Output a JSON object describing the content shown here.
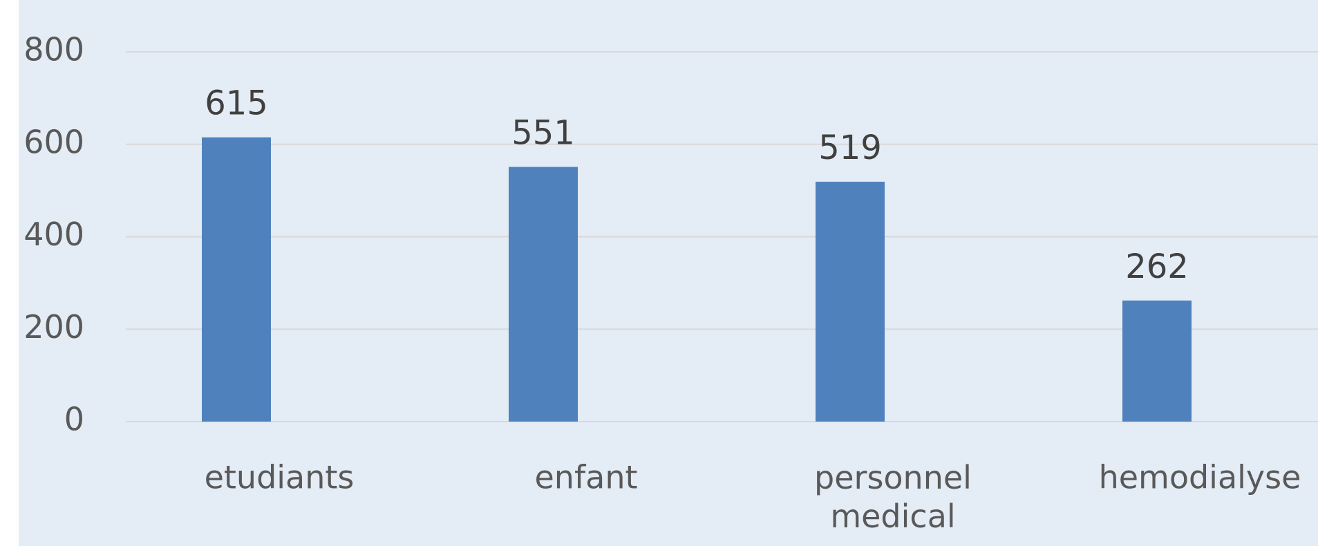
{
  "chart_data": {
    "type": "bar",
    "categories": [
      "etudiants",
      "enfant",
      "personnel medical",
      "hemodialyse"
    ],
    "values": [
      615,
      551,
      519,
      262
    ],
    "color": "#4f81bd",
    "ylim": [
      0,
      800
    ],
    "yticks": [
      0,
      200,
      400,
      600,
      800
    ],
    "grid": true
  }
}
